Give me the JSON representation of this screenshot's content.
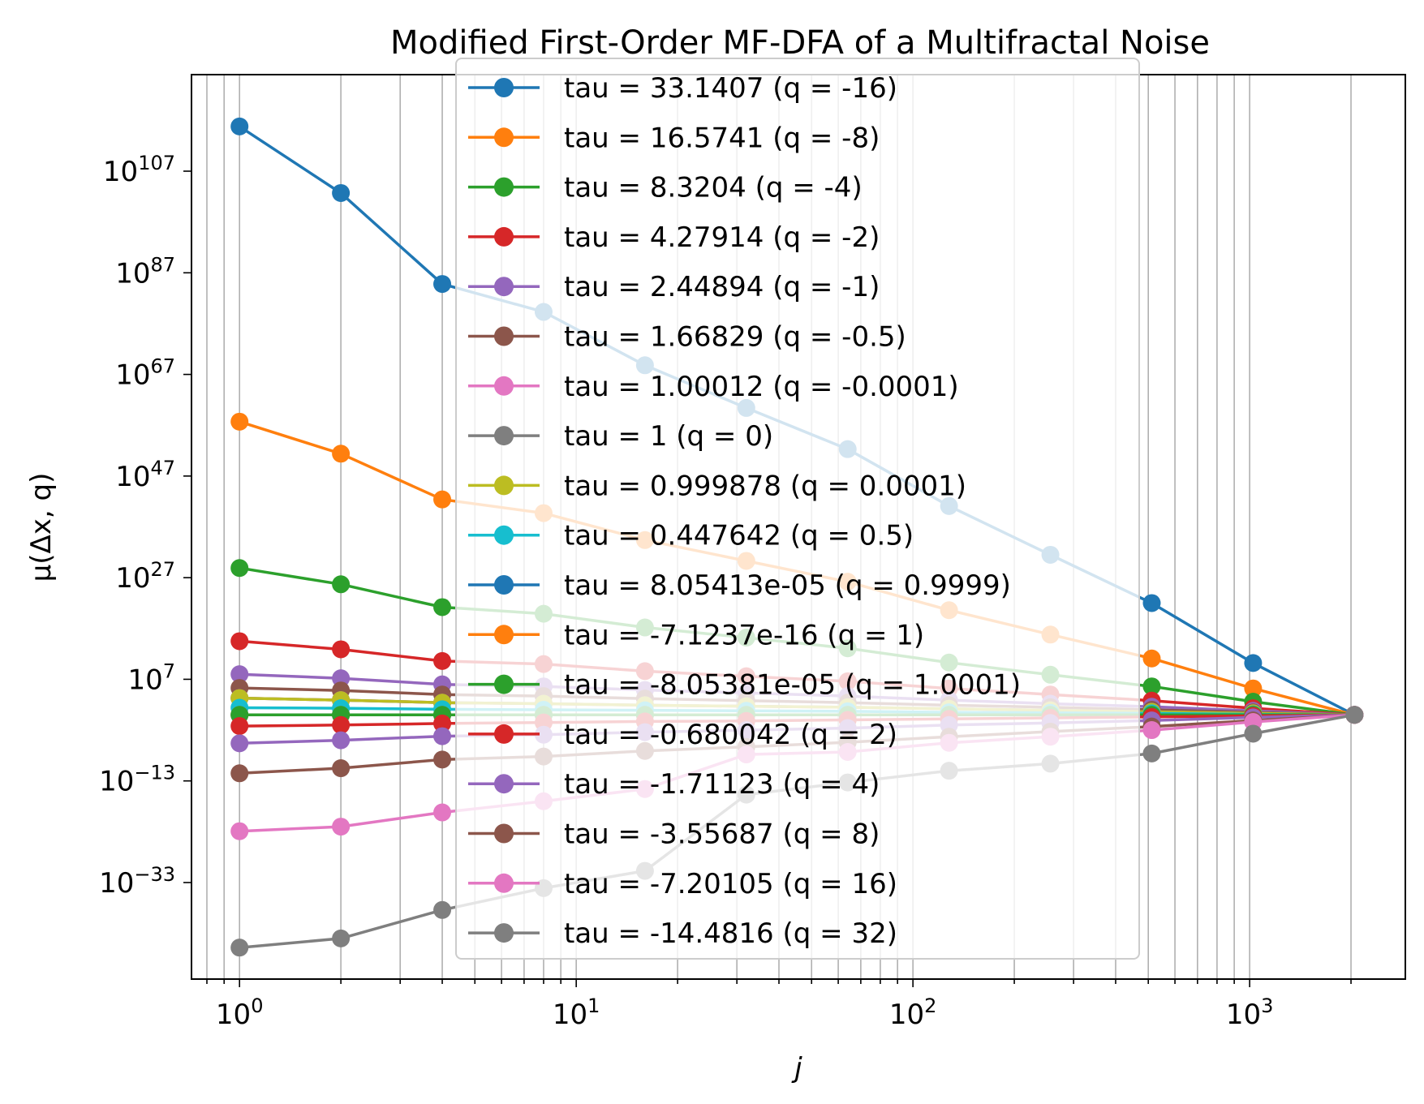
{
  "chart_data": {
    "type": "line",
    "title": "Modified First-Order MF-DFA of a Multifractal Noise",
    "xlabel": "j",
    "ylabel": "μ(Δx, q)",
    "xscale": "log",
    "yscale": "log",
    "xlim": [
      0.72,
      2900
    ],
    "ylim_log10": [
      -52,
      126
    ],
    "grid": "x-axis major and minor vertical lines",
    "legend_position": "upper center",
    "x_tick_labels": [
      {
        "value": 1,
        "base": "10",
        "exp": "0"
      },
      {
        "value": 10,
        "base": "10",
        "exp": "1"
      },
      {
        "value": 100,
        "base": "10",
        "exp": "2"
      },
      {
        "value": 1000,
        "base": "10",
        "exp": "3"
      }
    ],
    "y_tick_labels": [
      {
        "log10": 107,
        "base": "10",
        "exp": "107"
      },
      {
        "log10": 87,
        "base": "10",
        "exp": "87"
      },
      {
        "log10": 67,
        "base": "10",
        "exp": "67"
      },
      {
        "log10": 47,
        "base": "10",
        "exp": "47"
      },
      {
        "log10": 27,
        "base": "10",
        "exp": "27"
      },
      {
        "log10": 7,
        "base": "10",
        "exp": "7"
      },
      {
        "log10": -13,
        "base": "10",
        "exp": "−13"
      },
      {
        "log10": -33,
        "base": "10",
        "exp": "−33"
      }
    ],
    "x": [
      1,
      2,
      4,
      8,
      16,
      32,
      64,
      128,
      256,
      512,
      1024,
      2048
    ],
    "series": [
      {
        "name": "tau = 33.1407 (q = -16)",
        "color": "#1f77b4",
        "log10_values": [
          115.8,
          102.7,
          84.8,
          79.3,
          68.8,
          60.4,
          52.3,
          41.1,
          31.5,
          22.0,
          10.2,
          0
        ]
      },
      {
        "name": "tau = 16.5741 (q = -8)",
        "color": "#ff7f0e",
        "log10_values": [
          57.7,
          51.4,
          42.4,
          39.7,
          34.4,
          30.3,
          26.2,
          20.6,
          15.8,
          11.1,
          5.2,
          0
        ]
      },
      {
        "name": "tau = 8.3204 (q = -4)",
        "color": "#2ca02c",
        "log10_values": [
          28.9,
          25.7,
          21.2,
          19.9,
          17.2,
          15.2,
          13.1,
          10.3,
          7.9,
          5.6,
          2.6,
          0
        ]
      },
      {
        "name": "tau = 4.27914 (q = -2)",
        "color": "#d62728",
        "log10_values": [
          14.5,
          12.9,
          10.6,
          10.0,
          8.6,
          7.6,
          6.6,
          5.2,
          4.0,
          2.8,
          1.3,
          0
        ]
      },
      {
        "name": "tau = 2.44894 (q = -1)",
        "color": "#9467bd",
        "log10_values": [
          8.0,
          7.2,
          6.0,
          5.6,
          4.9,
          4.3,
          3.7,
          2.9,
          2.2,
          1.6,
          0.8,
          0
        ]
      },
      {
        "name": "tau = 1.66829 (q = -0.5)",
        "color": "#8c564b",
        "log10_values": [
          5.3,
          4.8,
          4.0,
          3.7,
          3.2,
          2.8,
          2.4,
          1.9,
          1.5,
          1.0,
          0.5,
          0
        ]
      },
      {
        "name": "tau = 1.00012 (q = -0.0001)",
        "color": "#e377c2",
        "log10_values": [
          3.3,
          2.9,
          2.4,
          2.2,
          1.9,
          1.7,
          1.5,
          1.2,
          0.9,
          0.6,
          0.3,
          0
        ]
      },
      {
        "name": "tau = 1 (q = 0)",
        "color": "#7f7f7f",
        "log10_values": [
          3.3,
          2.9,
          2.4,
          2.2,
          1.9,
          1.7,
          1.5,
          1.2,
          0.9,
          0.6,
          0.3,
          0
        ]
      },
      {
        "name": "tau = 0.999878 (q = 0.0001)",
        "color": "#bcbd22",
        "log10_values": [
          3.3,
          2.9,
          2.4,
          2.2,
          1.9,
          1.7,
          1.5,
          1.2,
          0.9,
          0.6,
          0.3,
          0
        ]
      },
      {
        "name": "tau = 0.447642 (q = 0.5)",
        "color": "#17becf",
        "log10_values": [
          1.4,
          1.3,
          1.1,
          1.0,
          0.9,
          0.8,
          0.7,
          0.5,
          0.4,
          0.3,
          0.1,
          0
        ]
      },
      {
        "name": "tau = 8.05413e-05 (q = 0.9999)",
        "color": "#1f77b4",
        "log10_values": [
          0,
          0,
          0,
          0,
          0,
          0,
          0,
          0,
          0,
          0,
          0,
          0
        ]
      },
      {
        "name": "tau = -7.1237e-16 (q = 1)",
        "color": "#ff7f0e",
        "log10_values": [
          0,
          0,
          0,
          0,
          0,
          0,
          0,
          0,
          0,
          0,
          0,
          0
        ]
      },
      {
        "name": "tau = -8.05381e-05 (q = 1.0001)",
        "color": "#2ca02c",
        "log10_values": [
          0,
          0,
          0,
          0,
          0,
          0,
          0,
          0,
          0,
          0,
          0,
          0
        ]
      },
      {
        "name": "tau = -0.680042 (q = 2)",
        "color": "#d62728",
        "log10_values": [
          -2.2,
          -2.0,
          -1.7,
          -1.5,
          -1.3,
          -1.2,
          -1.0,
          -0.8,
          -0.6,
          -0.4,
          -0.2,
          0
        ]
      },
      {
        "name": "tau = -1.71123 (q = 4)",
        "color": "#9467bd",
        "log10_values": [
          -5.6,
          -5.0,
          -4.2,
          -3.9,
          -3.4,
          -3.0,
          -2.6,
          -2.0,
          -1.6,
          -1.1,
          -0.5,
          0
        ]
      },
      {
        "name": "tau = -3.55687 (q = 8)",
        "color": "#8c564b",
        "log10_values": [
          -11.5,
          -10.5,
          -8.8,
          -8.2,
          -7.1,
          -6.3,
          -5.4,
          -4.3,
          -3.3,
          -2.3,
          -1.1,
          0
        ]
      },
      {
        "name": "tau = -7.20105 (q = 16)",
        "color": "#e377c2",
        "log10_values": [
          -22.9,
          -22.0,
          -19.2,
          -17.0,
          -14.6,
          -7.8,
          -7.3,
          -5.5,
          -4.3,
          -3.0,
          -1.4,
          0
        ]
      },
      {
        "name": "tau = -14.4816 (q = 32)",
        "color": "#7f7f7f",
        "log10_values": [
          -45.8,
          -44.0,
          -38.4,
          -34.1,
          -30.7,
          -15.7,
          -13.3,
          -11.0,
          -9.6,
          -7.6,
          -3.7,
          0
        ]
      }
    ]
  }
}
